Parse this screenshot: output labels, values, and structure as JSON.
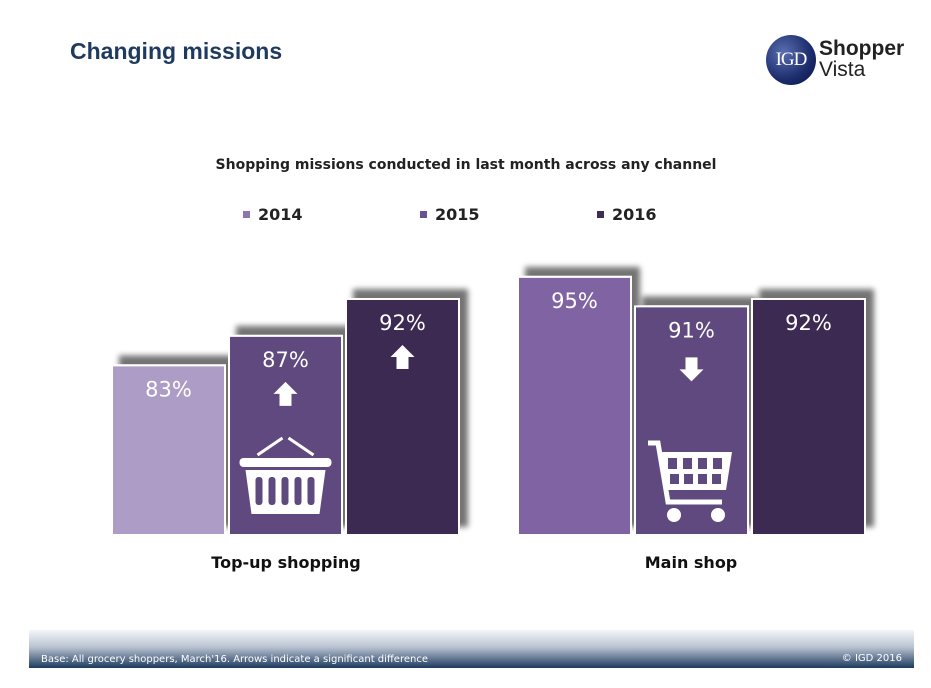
{
  "header": {
    "title": "Changing missions"
  },
  "logo": {
    "mark": "IGD",
    "line1": "Shopper",
    "line2": "Vista"
  },
  "chart_data": {
    "type": "bar",
    "title": "Shopping missions conducted in last month across any channel",
    "categories": [
      "Top-up shopping",
      "Main shop"
    ],
    "series": [
      {
        "name": "2014",
        "values": [
          83,
          95
        ],
        "labels": [
          "83%",
          "95%"
        ]
      },
      {
        "name": "2015",
        "values": [
          87,
          91
        ],
        "labels": [
          "87%",
          "91%"
        ]
      },
      {
        "name": "2016",
        "values": [
          92,
          92
        ],
        "labels": [
          "92%",
          "92%"
        ]
      }
    ],
    "significance": [
      [
        "none",
        "none"
      ],
      [
        "up",
        "down"
      ],
      [
        "up",
        "none"
      ]
    ],
    "legend_colors": [
      "#8e75b0",
      "#6a528d",
      "#3e2c52"
    ],
    "bar_colors": [
      [
        "#ad9cc5",
        "#8064a2"
      ],
      [
        "#5e4a7e",
        "#5e4a7e"
      ],
      [
        "#3e2c52",
        "#3e2c52"
      ]
    ],
    "category_icons": [
      "basket-icon",
      "shopping-cart-icon"
    ],
    "ylim": [
      60,
      100
    ],
    "grid": false,
    "legend_position": "top"
  },
  "footer": {
    "base": "Base: All grocery shoppers, March'16. Arrows indicate a significant difference",
    "copyright": "© IGD 2016"
  }
}
